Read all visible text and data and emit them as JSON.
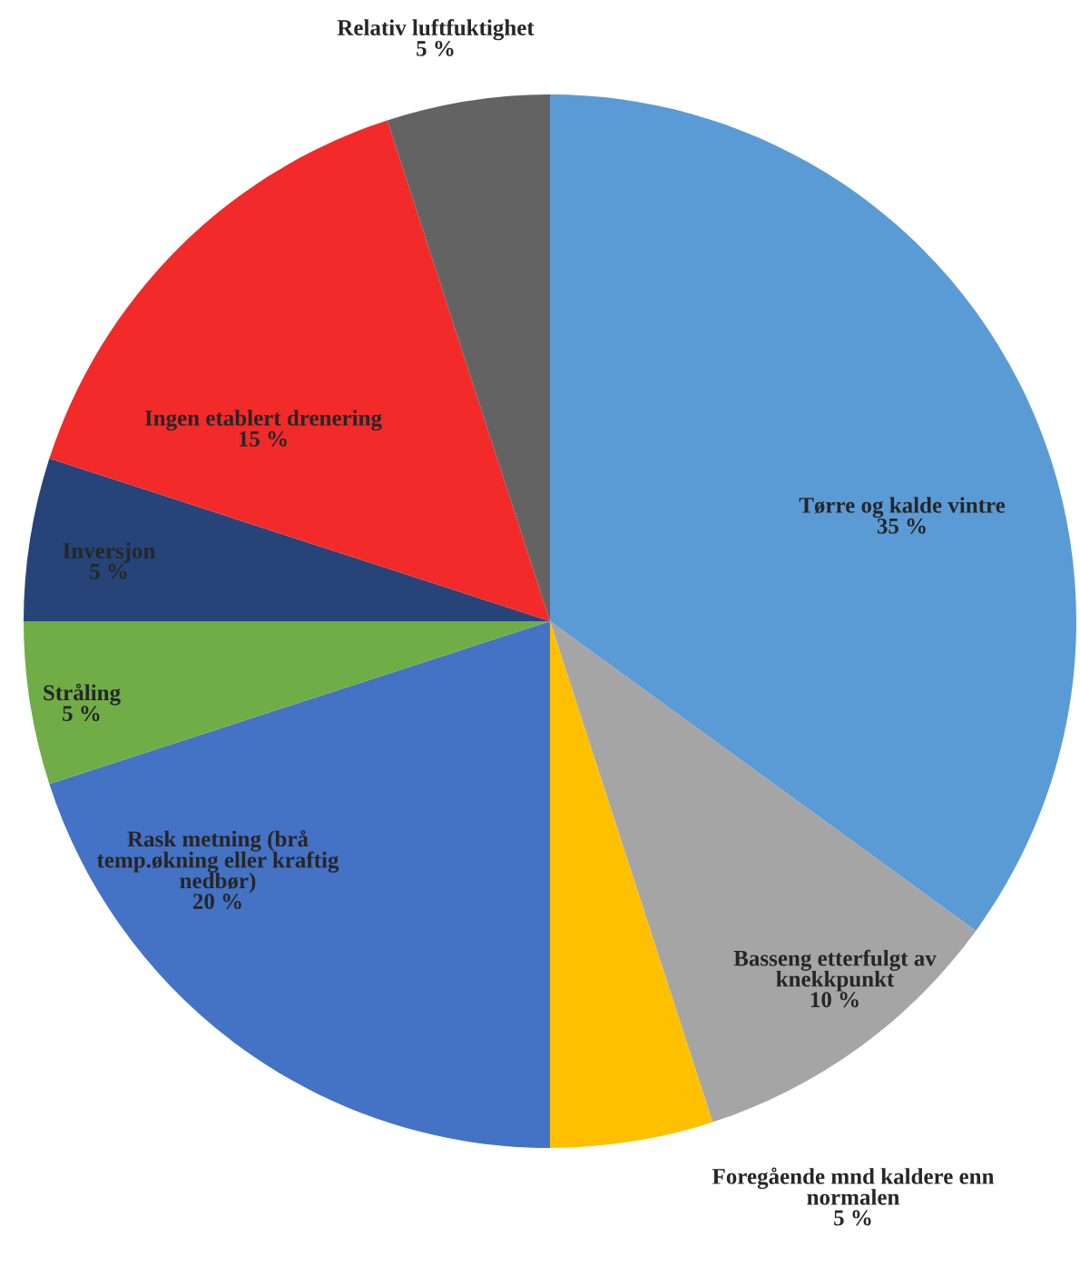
{
  "chart_data": {
    "type": "pie",
    "categories": [
      "Tørre og kalde vintre",
      "Basseng etterfulgt av\nknekkpunkt",
      "Foregående mnd kaldere enn\nnormalen",
      "Rask metning (brå\ntemp.økning eller kraftig\nnedbør)",
      "Stråling",
      "Inversjon",
      "Ingen etablert drenering",
      "Relativ luftfuktighet"
    ],
    "values": [
      35,
      10,
      5,
      20,
      5,
      5,
      15,
      5
    ],
    "value_labels": [
      "35 %",
      "10 %",
      "5 %",
      "20 %",
      "5 %",
      "5 %",
      "15 %",
      "5 %"
    ],
    "colors": [
      "#5b9bd5",
      "#a5a5a5",
      "#ffc000",
      "#4472c4",
      "#70ad47",
      "#264478",
      "#f22a2a",
      "#636363"
    ]
  }
}
